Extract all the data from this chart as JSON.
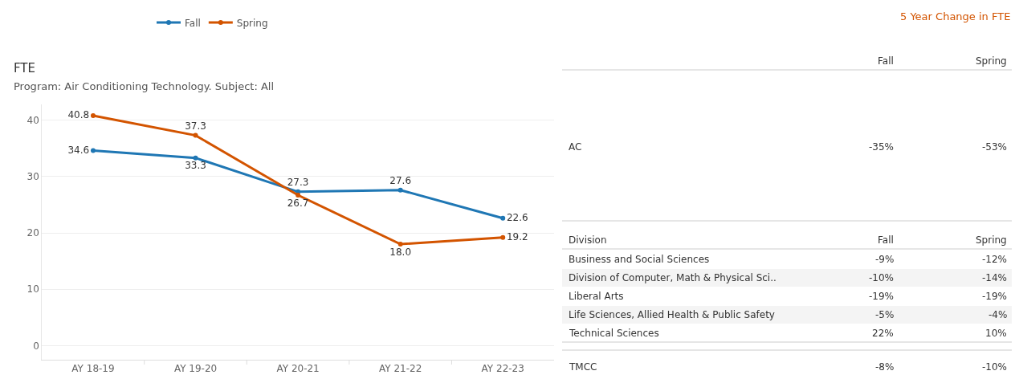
{
  "chart_data": [
    {
      "type": "line",
      "title": "FTE",
      "subtitle": "Program: Air Conditioning Technology. Subject: All",
      "categories": [
        "AY 18-19",
        "AY 19-20",
        "AY 20-21",
        "AY 21-22",
        "AY 22-23"
      ],
      "series": [
        {
          "name": "Fall",
          "color": "#1f77b4",
          "values": [
            34.6,
            33.3,
            27.3,
            27.6,
            22.6
          ],
          "value_labels": [
            "34.6",
            "33.3",
            "27.3",
            "27.6",
            "22.6"
          ]
        },
        {
          "name": "Spring",
          "color": "#d35400",
          "values": [
            40.8,
            37.3,
            26.7,
            18.0,
            19.2
          ],
          "value_labels": [
            "40.8",
            "37.3",
            "26.7",
            "18.0",
            "19.2"
          ]
        }
      ],
      "ylim": [
        -2.5,
        42.8
      ],
      "yticks": [
        0,
        10,
        20,
        30,
        40
      ],
      "grid": "y",
      "legend": "top",
      "marker": "circle",
      "line_style": "solid"
    },
    {
      "type": "other",
      "title": "5 Year Change in FTE",
      "categories": [
        "Fall",
        "Spring"
      ],
      "y_categories": [
        "AC",
        "Business and Social Sciences",
        "Division of Computer, Math & Physical Sci..",
        "Liberal Arts",
        "Life Sciences, Allied Health & Public Safety",
        "Technical Sciences",
        "TMCC"
      ],
      "cell_labels": [
        [
          "-35%",
          "-53%"
        ],
        [
          "-9%",
          "-12%"
        ],
        [
          "-10%",
          "-14%"
        ],
        [
          "-19%",
          "-19%"
        ],
        [
          "-5%",
          "-4%"
        ],
        [
          "22%",
          "10%"
        ],
        [
          "-8%",
          "-10%"
        ]
      ],
      "annotations": [
        "Division"
      ]
    }
  ]
}
